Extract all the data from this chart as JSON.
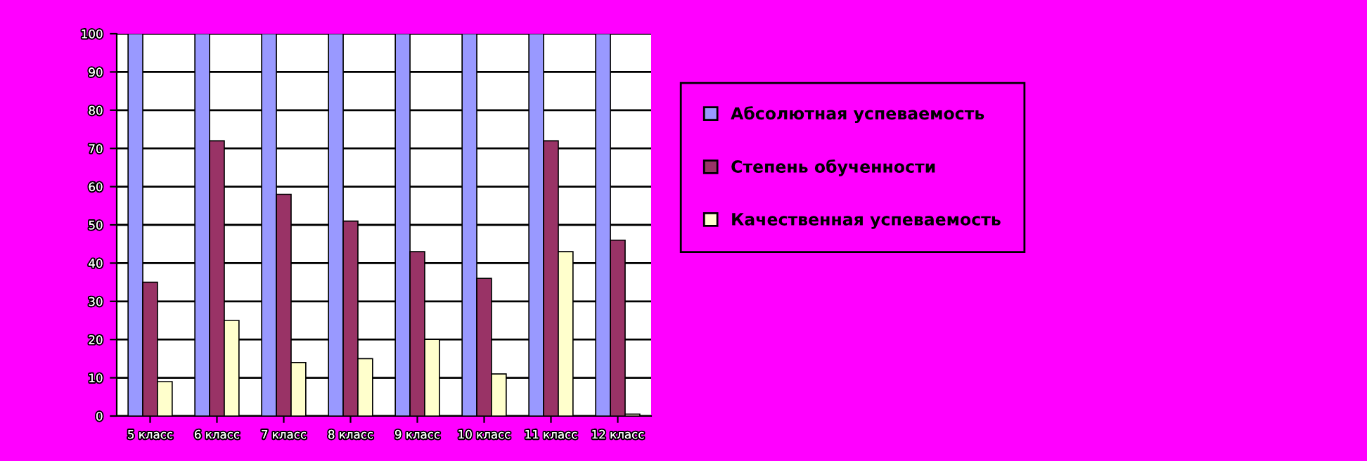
{
  "chart_data": {
    "type": "bar",
    "categories": [
      "5 класс",
      "6 класс",
      "7 класс",
      "8 класс",
      "9 класс",
      "10 класс",
      "11 класс",
      "12 класс"
    ],
    "series": [
      {
        "name": "Абсолютная успеваемость",
        "color": "#9999ff",
        "values": [
          100,
          100,
          100,
          100,
          100,
          100,
          100,
          100
        ]
      },
      {
        "name": "Степень обученности",
        "color": "#993366",
        "values": [
          35,
          72,
          58,
          51,
          43,
          36,
          72,
          46
        ]
      },
      {
        "name": "Качественная успеваемость",
        "color": "#ffffcc",
        "values": [
          9,
          25,
          14,
          15,
          20,
          11,
          43,
          0.5
        ]
      }
    ],
    "ylim": [
      0,
      100
    ],
    "yticks": [
      0,
      10,
      20,
      30,
      40,
      50,
      60,
      70,
      80,
      90,
      100
    ],
    "grid": "y",
    "legend": "right"
  }
}
